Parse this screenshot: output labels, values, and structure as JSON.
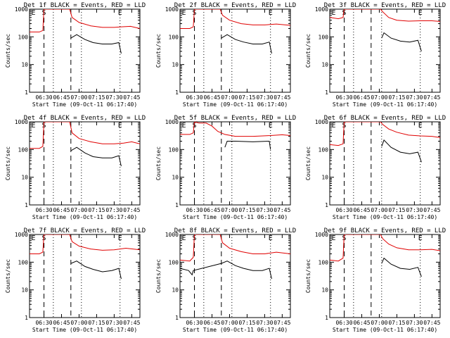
{
  "chart_data": {
    "type": "line",
    "common": {
      "title_suffix": "BLACK = Events, RED = LLD",
      "xlabel": "Start Time (09-Oct-11 06:17:40)",
      "ylabel": "Counts/sec",
      "x_ticks": [
        "06:30",
        "06:45",
        "07:00",
        "07:15",
        "07:30",
        "07:45"
      ],
      "y_scale": "log",
      "ylim": [
        1,
        1000
      ],
      "y_ticks": [
        "1",
        "10",
        "100",
        "1000"
      ],
      "xlim": [
        "06:17:40",
        "07:52"
      ],
      "series_colors": {
        "events": "#000000",
        "lld": "#e00000"
      },
      "markers": [
        {
          "label": "E",
          "time": "06:21",
          "style": "none"
        },
        {
          "label": "S",
          "time": "06:30",
          "style": "dashed"
        },
        {
          "label": "",
          "time": "06:38",
          "style": "dotted"
        },
        {
          "label": "",
          "time": "06:53",
          "style": "dashed"
        },
        {
          "label": "",
          "time": "07:02",
          "style": "dotted"
        },
        {
          "label": "E",
          "time": "07:35",
          "style": "dotted"
        }
      ]
    },
    "panels": [
      {
        "title_prefix": "Det 1f",
        "events": [
          {
            "t": "06:53",
            "v": 90
          },
          {
            "t": "06:58",
            "v": 120
          },
          {
            "t": "07:05",
            "v": 80
          },
          {
            "t": "07:12",
            "v": 62
          },
          {
            "t": "07:20",
            "v": 55
          },
          {
            "t": "07:28",
            "v": 55
          },
          {
            "t": "07:34",
            "v": 62
          },
          {
            "t": "07:36",
            "v": 25
          }
        ],
        "lld": [
          {
            "t": "06:17:40",
            "v": 150
          },
          {
            "t": "06:26",
            "v": 150
          },
          {
            "t": "06:29",
            "v": 170
          },
          {
            "t": "06:30",
            "v": 1000
          },
          {
            "t": "06:52",
            "v": 1000
          },
          {
            "t": "06:54",
            "v": 500
          },
          {
            "t": "07:00",
            "v": 330
          },
          {
            "t": "07:10",
            "v": 250
          },
          {
            "t": "07:20",
            "v": 220
          },
          {
            "t": "07:30",
            "v": 220
          },
          {
            "t": "07:36",
            "v": 230
          },
          {
            "t": "07:44",
            "v": 240
          },
          {
            "t": "07:52",
            "v": 200
          }
        ]
      },
      {
        "title_prefix": "Det 2f",
        "events": [
          {
            "t": "06:53",
            "v": 90
          },
          {
            "t": "06:58",
            "v": 120
          },
          {
            "t": "07:05",
            "v": 80
          },
          {
            "t": "07:12",
            "v": 65
          },
          {
            "t": "07:20",
            "v": 55
          },
          {
            "t": "07:28",
            "v": 55
          },
          {
            "t": "07:34",
            "v": 65
          },
          {
            "t": "07:36",
            "v": 25
          }
        ],
        "lld": [
          {
            "t": "06:17:40",
            "v": 200
          },
          {
            "t": "06:26",
            "v": 200
          },
          {
            "t": "06:29",
            "v": 230
          },
          {
            "t": "06:30",
            "v": 1000
          },
          {
            "t": "06:52",
            "v": 1000
          },
          {
            "t": "06:54",
            "v": 600
          },
          {
            "t": "07:00",
            "v": 400
          },
          {
            "t": "07:10",
            "v": 300
          },
          {
            "t": "07:20",
            "v": 270
          },
          {
            "t": "07:30",
            "v": 270
          },
          {
            "t": "07:40",
            "v": 290
          },
          {
            "t": "07:52",
            "v": 260
          }
        ]
      },
      {
        "title_prefix": "Det 3f",
        "events": [
          {
            "t": "07:02",
            "v": 90
          },
          {
            "t": "07:04",
            "v": 140
          },
          {
            "t": "07:10",
            "v": 90
          },
          {
            "t": "07:18",
            "v": 70
          },
          {
            "t": "07:26",
            "v": 65
          },
          {
            "t": "07:33",
            "v": 75
          },
          {
            "t": "07:36",
            "v": 30
          }
        ],
        "lld": [
          {
            "t": "06:17:40",
            "v": 500
          },
          {
            "t": "06:25",
            "v": 450
          },
          {
            "t": "06:29",
            "v": 500
          },
          {
            "t": "06:30",
            "v": 1000
          },
          {
            "t": "07:01",
            "v": 1000
          },
          {
            "t": "07:03",
            "v": 800
          },
          {
            "t": "07:08",
            "v": 500
          },
          {
            "t": "07:15",
            "v": 400
          },
          {
            "t": "07:25",
            "v": 370
          },
          {
            "t": "07:35",
            "v": 380
          },
          {
            "t": "07:45",
            "v": 380
          },
          {
            "t": "07:52",
            "v": 360
          }
        ]
      },
      {
        "title_prefix": "Det 4f",
        "events": [
          {
            "t": "06:53",
            "v": 90
          },
          {
            "t": "06:58",
            "v": 120
          },
          {
            "t": "07:05",
            "v": 75
          },
          {
            "t": "07:12",
            "v": 55
          },
          {
            "t": "07:20",
            "v": 50
          },
          {
            "t": "07:28",
            "v": 50
          },
          {
            "t": "07:34",
            "v": 60
          },
          {
            "t": "07:36",
            "v": 25
          }
        ],
        "lld": [
          {
            "t": "06:17:40",
            "v": 110
          },
          {
            "t": "06:26",
            "v": 110
          },
          {
            "t": "06:29",
            "v": 130
          },
          {
            "t": "06:30",
            "v": 1000
          },
          {
            "t": "06:52",
            "v": 1000
          },
          {
            "t": "06:54",
            "v": 400
          },
          {
            "t": "07:00",
            "v": 250
          },
          {
            "t": "07:10",
            "v": 190
          },
          {
            "t": "07:20",
            "v": 160
          },
          {
            "t": "07:30",
            "v": 160
          },
          {
            "t": "07:38",
            "v": 170
          },
          {
            "t": "07:45",
            "v": 190
          },
          {
            "t": "07:52",
            "v": 160
          }
        ]
      },
      {
        "title_prefix": "Det 5f",
        "events": [
          {
            "t": "06:56",
            "v": 120
          },
          {
            "t": "06:58",
            "v": 200
          },
          {
            "t": "07:05",
            "v": 200
          },
          {
            "t": "07:20",
            "v": 190
          },
          {
            "t": "07:34",
            "v": 200
          },
          {
            "t": "07:35",
            "v": 100
          }
        ],
        "lld": [
          {
            "t": "06:17:40",
            "v": 350
          },
          {
            "t": "06:26",
            "v": 350
          },
          {
            "t": "06:29",
            "v": 400
          },
          {
            "t": "06:30",
            "v": 1000
          },
          {
            "t": "06:34",
            "v": 900
          },
          {
            "t": "06:40",
            "v": 900
          },
          {
            "t": "06:45",
            "v": 700
          },
          {
            "t": "06:50",
            "v": 450
          },
          {
            "t": "06:56",
            "v": 350
          },
          {
            "t": "07:05",
            "v": 300
          },
          {
            "t": "07:20",
            "v": 300
          },
          {
            "t": "07:35",
            "v": 320
          },
          {
            "t": "07:45",
            "v": 340
          },
          {
            "t": "07:52",
            "v": 320
          }
        ]
      },
      {
        "title_prefix": "Det 6f",
        "events": [
          {
            "t": "07:02",
            "v": 130
          },
          {
            "t": "07:04",
            "v": 220
          },
          {
            "t": "07:10",
            "v": 120
          },
          {
            "t": "07:18",
            "v": 80
          },
          {
            "t": "07:26",
            "v": 70
          },
          {
            "t": "07:33",
            "v": 80
          },
          {
            "t": "07:36",
            "v": 35
          }
        ],
        "lld": [
          {
            "t": "06:17:40",
            "v": 150
          },
          {
            "t": "06:25",
            "v": 140
          },
          {
            "t": "06:29",
            "v": 160
          },
          {
            "t": "06:30",
            "v": 1000
          },
          {
            "t": "07:01",
            "v": 1000
          },
          {
            "t": "07:03",
            "v": 800
          },
          {
            "t": "07:08",
            "v": 550
          },
          {
            "t": "07:15",
            "v": 420
          },
          {
            "t": "07:25",
            "v": 330
          },
          {
            "t": "07:35",
            "v": 310
          },
          {
            "t": "07:45",
            "v": 300
          },
          {
            "t": "07:52",
            "v": 270
          }
        ]
      },
      {
        "title_prefix": "Det 7f",
        "events": [
          {
            "t": "06:53",
            "v": 90
          },
          {
            "t": "06:58",
            "v": 110
          },
          {
            "t": "07:05",
            "v": 70
          },
          {
            "t": "07:12",
            "v": 55
          },
          {
            "t": "07:20",
            "v": 45
          },
          {
            "t": "07:28",
            "v": 50
          },
          {
            "t": "07:34",
            "v": 60
          },
          {
            "t": "07:36",
            "v": 25
          }
        ],
        "lld": [
          {
            "t": "06:17:40",
            "v": 200
          },
          {
            "t": "06:26",
            "v": 200
          },
          {
            "t": "06:29",
            "v": 230
          },
          {
            "t": "06:30",
            "v": 1000
          },
          {
            "t": "06:52",
            "v": 1000
          },
          {
            "t": "06:54",
            "v": 550
          },
          {
            "t": "07:00",
            "v": 380
          },
          {
            "t": "07:10",
            "v": 300
          },
          {
            "t": "07:20",
            "v": 270
          },
          {
            "t": "07:30",
            "v": 280
          },
          {
            "t": "07:40",
            "v": 320
          },
          {
            "t": "07:52",
            "v": 280
          }
        ]
      },
      {
        "title_prefix": "Det 8f",
        "events": [
          {
            "t": "06:17:40",
            "v": 60
          },
          {
            "t": "06:25",
            "v": 50
          },
          {
            "t": "06:28",
            "v": 35
          },
          {
            "t": "06:29",
            "v": 50
          },
          {
            "t": "06:53",
            "v": 90
          },
          {
            "t": "06:58",
            "v": 110
          },
          {
            "t": "07:05",
            "v": 75
          },
          {
            "t": "07:12",
            "v": 60
          },
          {
            "t": "07:20",
            "v": 50
          },
          {
            "t": "07:28",
            "v": 50
          },
          {
            "t": "07:34",
            "v": 60
          },
          {
            "t": "07:36",
            "v": 25
          }
        ],
        "lld": [
          {
            "t": "06:17:40",
            "v": 120
          },
          {
            "t": "06:26",
            "v": 110
          },
          {
            "t": "06:29",
            "v": 150
          },
          {
            "t": "06:30",
            "v": 1000
          },
          {
            "t": "06:52",
            "v": 1000
          },
          {
            "t": "06:54",
            "v": 500
          },
          {
            "t": "07:00",
            "v": 320
          },
          {
            "t": "07:10",
            "v": 240
          },
          {
            "t": "07:20",
            "v": 200
          },
          {
            "t": "07:30",
            "v": 200
          },
          {
            "t": "07:40",
            "v": 230
          },
          {
            "t": "07:52",
            "v": 200
          }
        ]
      },
      {
        "title_prefix": "Det 9f",
        "events": [
          {
            "t": "07:02",
            "v": 90
          },
          {
            "t": "07:04",
            "v": 140
          },
          {
            "t": "07:10",
            "v": 85
          },
          {
            "t": "07:18",
            "v": 60
          },
          {
            "t": "07:26",
            "v": 55
          },
          {
            "t": "07:33",
            "v": 65
          },
          {
            "t": "07:36",
            "v": 30
          }
        ],
        "lld": [
          {
            "t": "06:17:40",
            "v": 120
          },
          {
            "t": "06:25",
            "v": 110
          },
          {
            "t": "06:29",
            "v": 140
          },
          {
            "t": "06:30",
            "v": 1000
          },
          {
            "t": "07:01",
            "v": 1000
          },
          {
            "t": "07:03",
            "v": 700
          },
          {
            "t": "07:08",
            "v": 450
          },
          {
            "t": "07:15",
            "v": 330
          },
          {
            "t": "07:25",
            "v": 280
          },
          {
            "t": "07:35",
            "v": 280
          },
          {
            "t": "07:45",
            "v": 290
          },
          {
            "t": "07:52",
            "v": 260
          }
        ]
      }
    ]
  }
}
